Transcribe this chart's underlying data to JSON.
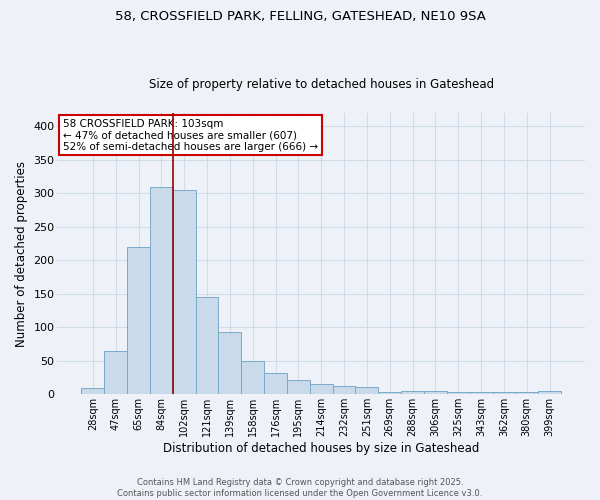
{
  "title_line1": "58, CROSSFIELD PARK, FELLING, GATESHEAD, NE10 9SA",
  "title_line2": "Size of property relative to detached houses in Gateshead",
  "xlabel": "Distribution of detached houses by size in Gateshead",
  "ylabel": "Number of detached properties",
  "categories": [
    "28sqm",
    "47sqm",
    "65sqm",
    "84sqm",
    "102sqm",
    "121sqm",
    "139sqm",
    "158sqm",
    "176sqm",
    "195sqm",
    "214sqm",
    "232sqm",
    "251sqm",
    "269sqm",
    "288sqm",
    "306sqm",
    "325sqm",
    "343sqm",
    "362sqm",
    "380sqm",
    "399sqm"
  ],
  "values": [
    9,
    65,
    220,
    310,
    305,
    145,
    93,
    49,
    32,
    22,
    15,
    12,
    11,
    4,
    5,
    5,
    3,
    4,
    4,
    4,
    5
  ],
  "bar_color": "#c9daea",
  "bar_edge_color": "#7aaac8",
  "grid_color": "#d0dce8",
  "background_color": "#eef2f8",
  "vline_x_idx": 4,
  "vline_color": "#990000",
  "annotation_text": "58 CROSSFIELD PARK: 103sqm\n← 47% of detached houses are smaller (607)\n52% of semi-detached houses are larger (666) →",
  "annotation_box_color": "#ffffff",
  "annotation_box_edge": "#cc0000",
  "footer_line1": "Contains HM Land Registry data © Crown copyright and database right 2025.",
  "footer_line2": "Contains public sector information licensed under the Open Government Licence v3.0.",
  "ylim": [
    0,
    420
  ],
  "yticks": [
    0,
    50,
    100,
    150,
    200,
    250,
    300,
    350,
    400
  ],
  "title1_fontsize": 9.5,
  "title2_fontsize": 8.5,
  "xlabel_fontsize": 8.5,
  "ylabel_fontsize": 8.5,
  "xtick_fontsize": 7,
  "ytick_fontsize": 8,
  "annot_fontsize": 7.5,
  "footer_fontsize": 6
}
